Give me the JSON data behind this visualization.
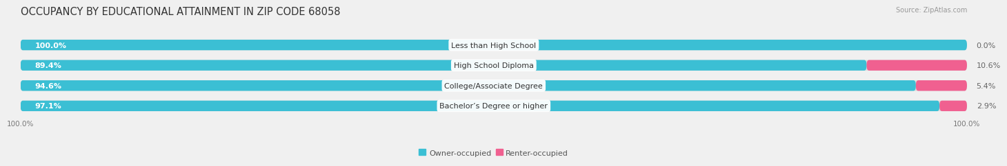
{
  "title": "OCCUPANCY BY EDUCATIONAL ATTAINMENT IN ZIP CODE 68058",
  "source": "Source: ZipAtlas.com",
  "categories": [
    "Less than High School",
    "High School Diploma",
    "College/Associate Degree",
    "Bachelor’s Degree or higher"
  ],
  "owner_values": [
    100.0,
    89.4,
    94.6,
    97.1
  ],
  "renter_values": [
    0.0,
    10.6,
    5.4,
    2.9
  ],
  "owner_color": "#3BBFD4",
  "owner_color_light": "#90D8E4",
  "renter_color": "#F06090",
  "renter_color_light": "#F5A8C4",
  "bg_color": "#F0F0F0",
  "bar_bg_color": "#DCDCDC",
  "title_fontsize": 10.5,
  "label_fontsize": 8,
  "tick_fontsize": 7.5,
  "source_fontsize": 7,
  "legend_fontsize": 8,
  "bar_height": 0.52,
  "rounding_size": 0.25
}
